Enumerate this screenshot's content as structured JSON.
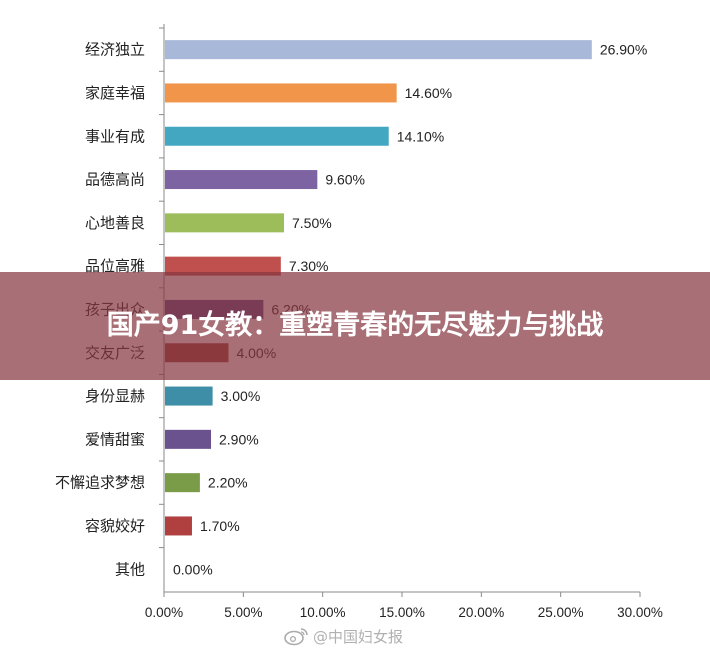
{
  "overlay": {
    "title": "国产91女教：重塑青春的无尽魅力与挑战"
  },
  "watermark": {
    "text": "@中国妇女报",
    "icon": "weibo-icon"
  },
  "chart_data": {
    "type": "bar",
    "orientation": "horizontal",
    "title": "",
    "xlabel": "",
    "ylabel": "",
    "xlim": [
      0,
      30
    ],
    "x_ticks": [
      "0.00%",
      "5.00%",
      "10.00%",
      "15.00%",
      "20.00%",
      "25.00%",
      "30.00%"
    ],
    "grid": false,
    "categories": [
      "经济独立",
      "家庭幸福",
      "事业有成",
      "品德高尚",
      "心地善良",
      "品位高雅",
      "孩子出众",
      "交友广泛",
      "身份显赫",
      "爱情甜蜜",
      "不懈追求梦想",
      "容貌姣好",
      "其他"
    ],
    "values": [
      26.9,
      14.6,
      14.1,
      9.6,
      7.5,
      7.3,
      6.2,
      4.0,
      3.0,
      2.9,
      2.2,
      1.7,
      0.0
    ],
    "value_labels": [
      "26.90%",
      "14.60%",
      "14.10%",
      "9.60%",
      "7.50%",
      "7.30%",
      "6.20%",
      "4.00%",
      "3.00%",
      "2.90%",
      "2.20%",
      "1.70%",
      "0.00%"
    ],
    "colors": [
      "#a8b8d8",
      "#f0954a",
      "#43a7c2",
      "#7e63a3",
      "#9dbd5a",
      "#c0504d",
      "#5a4a8a",
      "#9b3d35",
      "#3d8ea6",
      "#6a528e",
      "#7a9c48",
      "#b04040",
      "#888888"
    ]
  }
}
